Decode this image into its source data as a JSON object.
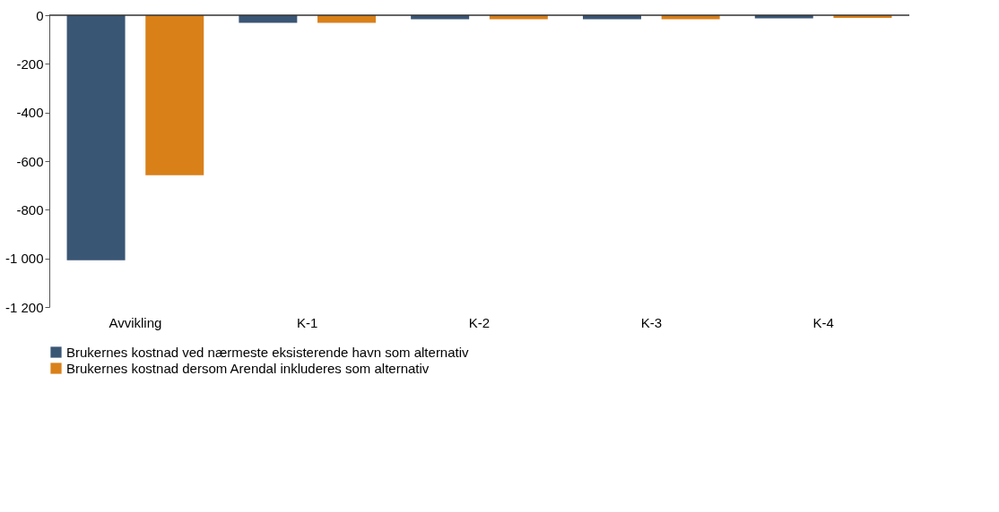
{
  "chart_data": {
    "type": "bar",
    "categories": [
      "Avvikling",
      "K-1",
      "K-2",
      "K-3",
      "K-4"
    ],
    "series": [
      {
        "name": "Brukernes kostnad ved nærmeste eksisterende havn som alternativ",
        "color": "#3a5675",
        "values": [
          -1008,
          -31,
          -17,
          -17,
          -13
        ]
      },
      {
        "name": "Brukernes kostnad dersom Arendal inkluderes som alternativ",
        "color": "#d98019",
        "values": [
          -658,
          -31,
          -17,
          -17,
          -11
        ]
      }
    ],
    "ylim": [
      -1200,
      0
    ],
    "yticks": [
      {
        "value": -1200,
        "label": "-1 200"
      },
      {
        "value": -1000,
        "label": "-1 000"
      },
      -800,
      -600,
      -400,
      -200,
      0
    ],
    "grid": false,
    "legend": "bottom"
  }
}
